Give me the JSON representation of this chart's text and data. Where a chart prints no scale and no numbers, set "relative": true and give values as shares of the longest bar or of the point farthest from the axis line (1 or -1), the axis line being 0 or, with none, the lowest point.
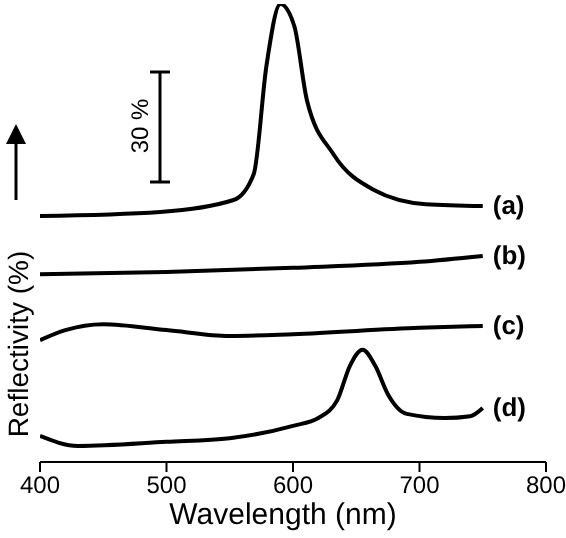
{
  "chart_data": {
    "type": "line",
    "xlabel": "Wavelength (nm)",
    "ylabel": "Reflectivity (%)",
    "relative": true,
    "xlim": [
      400,
      800
    ],
    "xticks": [
      400,
      500,
      600,
      700,
      800
    ],
    "legend": false,
    "grid": false,
    "marker": "none",
    "line_style": "solid",
    "annotations": [
      "30 %"
    ],
    "series": [
      {
        "name": "(a)",
        "color": "#000000",
        "x": [
          400,
          495,
          553,
          569,
          579,
          590,
          601,
          611,
          632,
          664,
          705,
          750
        ],
        "values": [
          0.537,
          0.546,
          0.572,
          0.629,
          0.865,
          1,
          0.952,
          0.79,
          0.672,
          0.594,
          0.563,
          0.559
        ]
      },
      {
        "name": "(b)",
        "color": "#000000",
        "x": [
          400,
          500,
          600,
          700,
          750
        ],
        "values": [
          0.41,
          0.415,
          0.424,
          0.437,
          0.45
        ]
      },
      {
        "name": "(c)",
        "color": "#000000",
        "x": [
          400,
          420,
          450,
          500,
          550,
          600,
          700,
          750
        ],
        "values": [
          0.266,
          0.288,
          0.301,
          0.288,
          0.275,
          0.279,
          0.293,
          0.297
        ]
      },
      {
        "name": "(d)",
        "color": "#000000",
        "x": [
          400,
          430,
          500,
          550,
          600,
          620,
          635,
          645,
          655,
          665,
          675,
          690,
          720,
          740,
          750
        ],
        "values": [
          0.057,
          0.035,
          0.044,
          0.052,
          0.079,
          0.096,
          0.135,
          0.21,
          0.245,
          0.21,
          0.148,
          0.105,
          0.096,
          0.1,
          0.118
        ]
      }
    ]
  }
}
